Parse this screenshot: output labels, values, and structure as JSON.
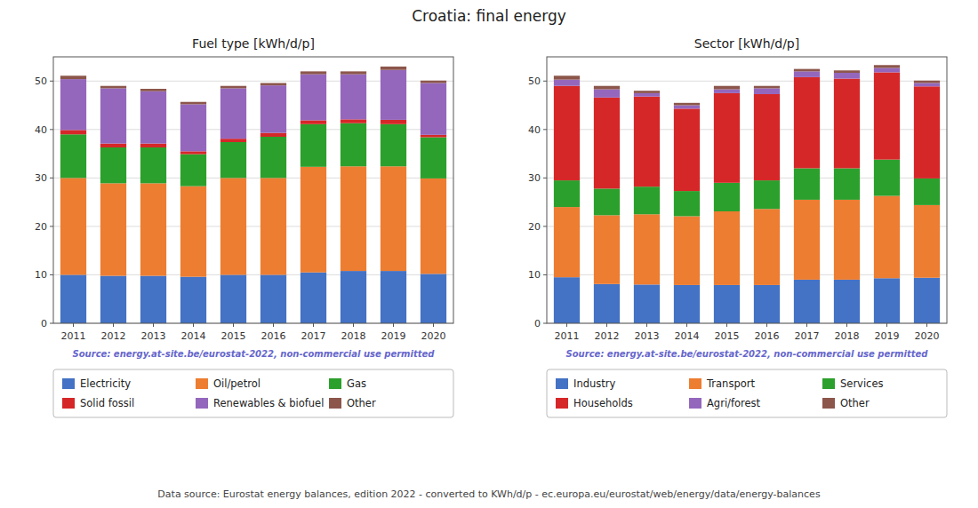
{
  "title": "Croatia: final energy",
  "annotations": [
    "Data source: Eurostat energy balances, edition 2022 - converted to KWh/d/p - ec.europa.eu/eurostat/web/energy/data/energy-balances"
  ],
  "chart_data": [
    {
      "type": "bar",
      "stacked": true,
      "title": "Fuel type [kWh/d/p]",
      "categories": [
        "2011",
        "2012",
        "2013",
        "2014",
        "2015",
        "2016",
        "2017",
        "2018",
        "2019",
        "2020"
      ],
      "series": [
        {
          "name": "Electricity",
          "color": "#4472c4",
          "values": [
            10.0,
            9.8,
            9.8,
            9.6,
            10.0,
            10.0,
            10.5,
            10.8,
            10.8,
            10.2
          ]
        },
        {
          "name": "Oil/petrol",
          "color": "#ed7d31",
          "values": [
            20.0,
            19.1,
            19.1,
            18.7,
            20.0,
            20.0,
            21.8,
            21.6,
            21.6,
            19.7
          ]
        },
        {
          "name": "Gas",
          "color": "#2ca02c",
          "values": [
            9.0,
            7.4,
            7.4,
            6.6,
            7.4,
            8.5,
            8.8,
            8.9,
            8.7,
            8.5
          ]
        },
        {
          "name": "Solid fossil",
          "color": "#d62728",
          "values": [
            0.9,
            0.8,
            0.8,
            0.6,
            0.7,
            0.8,
            0.8,
            0.8,
            0.9,
            0.5
          ]
        },
        {
          "name": "Renewables & biofuel",
          "color": "#9467bd",
          "values": [
            10.5,
            11.4,
            10.8,
            9.7,
            10.4,
            9.8,
            9.5,
            9.3,
            10.3,
            10.7
          ]
        },
        {
          "name": "Other",
          "color": "#8c564b",
          "values": [
            0.7,
            0.5,
            0.5,
            0.5,
            0.5,
            0.5,
            0.6,
            0.6,
            0.7,
            0.5
          ]
        }
      ],
      "ylim": [
        0,
        55
      ],
      "yticks": [
        0,
        10,
        20,
        30,
        40,
        50
      ],
      "grid": true,
      "legend": "bottom",
      "annotations": [
        "Source: energy.at-site.be/eurostat-2022, non-commercial use permitted"
      ]
    },
    {
      "type": "bar",
      "stacked": true,
      "title": "Sector [kWh/d/p]",
      "categories": [
        "2011",
        "2012",
        "2013",
        "2014",
        "2015",
        "2016",
        "2017",
        "2018",
        "2019",
        "2020"
      ],
      "series": [
        {
          "name": "Industry",
          "color": "#4472c4",
          "values": [
            9.5,
            8.1,
            8.0,
            7.9,
            7.9,
            7.9,
            9.0,
            9.0,
            9.3,
            9.4
          ]
        },
        {
          "name": "Transport",
          "color": "#ed7d31",
          "values": [
            14.5,
            14.2,
            14.5,
            14.2,
            15.2,
            15.7,
            16.5,
            16.5,
            17.0,
            15.0
          ]
        },
        {
          "name": "Services",
          "color": "#2ca02c",
          "values": [
            5.5,
            5.5,
            5.7,
            5.2,
            5.9,
            5.9,
            6.5,
            6.5,
            7.5,
            5.5
          ]
        },
        {
          "name": "Households",
          "color": "#d62728",
          "values": [
            19.5,
            18.8,
            18.6,
            17.0,
            18.5,
            17.8,
            18.8,
            18.5,
            18.0,
            19.0
          ]
        },
        {
          "name": "Agri/forest",
          "color": "#9467bd",
          "values": [
            1.3,
            1.7,
            0.7,
            0.7,
            0.8,
            1.2,
            1.2,
            1.2,
            0.9,
            0.7
          ]
        },
        {
          "name": "Other",
          "color": "#8c564b",
          "values": [
            0.8,
            0.7,
            0.5,
            0.5,
            0.7,
            0.5,
            0.5,
            0.5,
            0.6,
            0.5
          ]
        }
      ],
      "ylim": [
        0,
        55
      ],
      "yticks": [
        0,
        10,
        20,
        30,
        40,
        50
      ],
      "grid": true,
      "legend": "bottom",
      "annotations": [
        "Source: energy.at-site.be/eurostat-2022, non-commercial use permitted"
      ]
    }
  ]
}
